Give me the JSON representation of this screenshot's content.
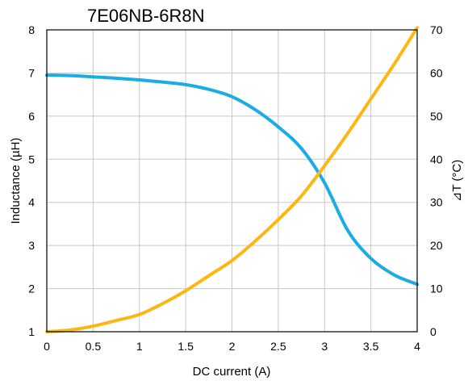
{
  "chart_data": {
    "type": "line",
    "title": "7E06NB-6R8N",
    "xlabel": "DC current (A)",
    "ylabel": "Inductance (µH)",
    "y2label": "⊿T (°C)",
    "xlim": [
      0,
      4
    ],
    "ylim": [
      1,
      8
    ],
    "y2lim": [
      0,
      70
    ],
    "xticks": [
      "0",
      "0.5",
      "1",
      "1.5",
      "2",
      "2.5",
      "3",
      "3.5",
      "4"
    ],
    "yticks": [
      "1",
      "2",
      "3",
      "4",
      "5",
      "6",
      "7",
      "8"
    ],
    "y2ticks": [
      "0",
      "10",
      "20",
      "30",
      "40",
      "50",
      "60",
      "70"
    ],
    "grid": true,
    "series": [
      {
        "axis": "left",
        "color": "#1aace3",
        "x": [
          0,
          0.25,
          0.5,
          0.75,
          1.0,
          1.25,
          1.5,
          1.75,
          2.0,
          2.25,
          2.5,
          2.75,
          3.0,
          3.25,
          3.5,
          3.75,
          4.0
        ],
        "y": [
          6.95,
          6.94,
          6.91,
          6.88,
          6.84,
          6.79,
          6.73,
          6.62,
          6.45,
          6.15,
          5.75,
          5.25,
          4.45,
          3.35,
          2.7,
          2.32,
          2.1
        ]
      },
      {
        "axis": "right",
        "color": "#fbb713",
        "x": [
          0,
          0.25,
          0.5,
          0.75,
          1.0,
          1.25,
          1.5,
          1.75,
          2.0,
          2.25,
          2.5,
          2.75,
          3.0,
          3.25,
          3.5,
          3.75,
          4.0
        ],
        "y": [
          0,
          0.4,
          1.3,
          2.6,
          4.0,
          6.5,
          9.5,
          13,
          16.5,
          21,
          26,
          31.5,
          38.5,
          46,
          54,
          62,
          70.5
        ]
      }
    ]
  }
}
